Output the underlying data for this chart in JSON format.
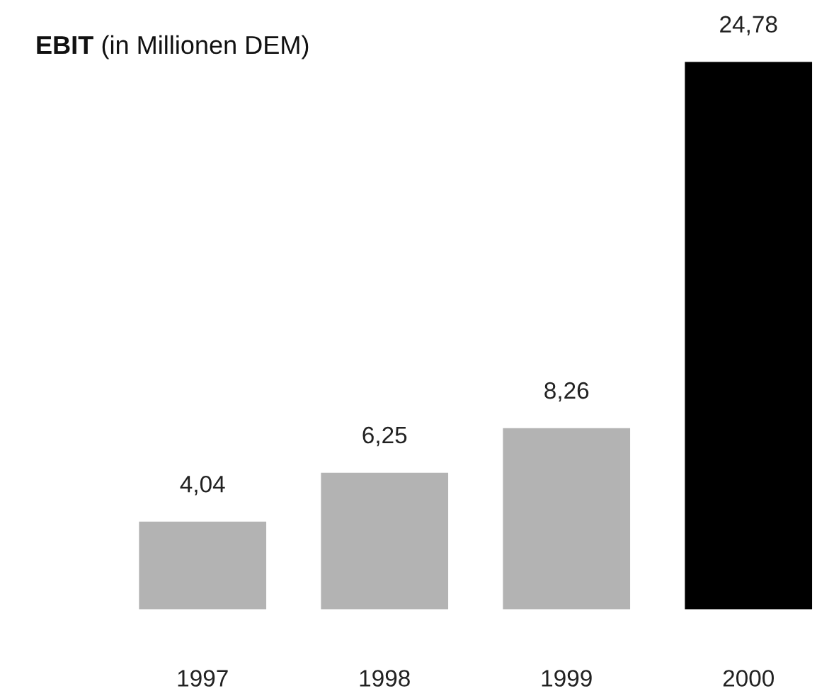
{
  "chart_data": {
    "type": "bar",
    "title": "EBIT",
    "subtitle": "(in Millionen DEM)",
    "categories": [
      "1997",
      "1998",
      "1999",
      "2000"
    ],
    "values": [
      4.04,
      6.25,
      8.26,
      24.78
    ],
    "colors": [
      "#b3b3b3",
      "#b3b3b3",
      "#b3b3b3",
      "#000000"
    ],
    "value_labels": [
      "4,04",
      "6,25",
      "8,26",
      "24,78"
    ],
    "grid": false,
    "legend": false
  }
}
